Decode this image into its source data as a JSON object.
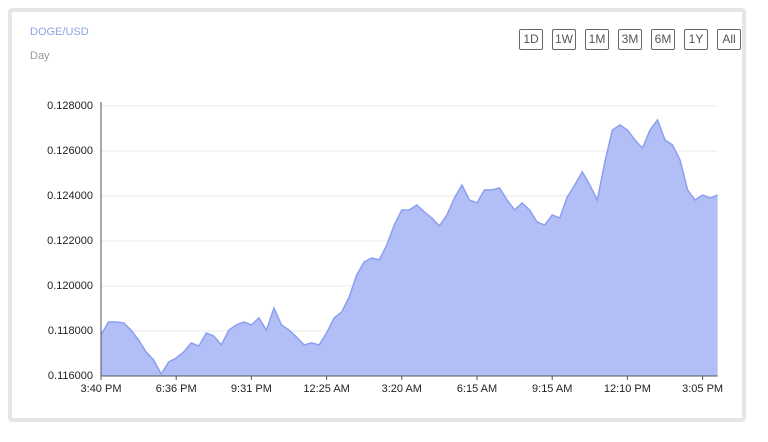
{
  "chart_data": {
    "type": "area",
    "title": "DOGE/USD",
    "subtitle": "Day",
    "color": "#8c9ef0",
    "fill": "#b2bff7",
    "grid": true,
    "categories": [
      "3:40 PM",
      null,
      null,
      null,
      null,
      null,
      null,
      null,
      null,
      null,
      "6:36 PM",
      null,
      null,
      null,
      null,
      null,
      null,
      null,
      null,
      null,
      "9:31 PM",
      null,
      null,
      null,
      null,
      null,
      null,
      null,
      null,
      null,
      "12:25 AM",
      null,
      null,
      null,
      null,
      null,
      null,
      null,
      null,
      null,
      "3:20 AM",
      null,
      null,
      null,
      null,
      null,
      null,
      null,
      null,
      null,
      "6:15 AM",
      null,
      null,
      null,
      null,
      null,
      null,
      null,
      null,
      null,
      "9:15 AM",
      null,
      null,
      null,
      null,
      null,
      null,
      null,
      null,
      null,
      "12:10 PM",
      null,
      null,
      null,
      null,
      null,
      null,
      null,
      null,
      null,
      "3:05 PM",
      null,
      null
    ],
    "values": [
      0.11782,
      0.1184,
      0.1184,
      0.11836,
      0.11804,
      0.1176,
      0.11707,
      0.11671,
      0.11609,
      0.11662,
      0.1168,
      0.11707,
      0.11747,
      0.11733,
      0.11791,
      0.11778,
      0.11738,
      0.11804,
      0.11827,
      0.1184,
      0.11827,
      0.11858,
      0.11804,
      0.11902,
      0.11827,
      0.11804,
      0.11773,
      0.11738,
      0.11747,
      0.11738,
      0.11791,
      0.11858,
      0.11884,
      0.11951,
      0.12049,
      0.12107,
      0.12124,
      0.12116,
      0.12182,
      0.12271,
      0.12338,
      0.12338,
      0.1236,
      0.12329,
      0.12302,
      0.12267,
      0.12316,
      0.12391,
      0.12449,
      0.12382,
      0.12369,
      0.12427,
      0.12427,
      0.12436,
      0.12382,
      0.12338,
      0.12369,
      0.12338,
      0.12284,
      0.12271,
      0.12316,
      0.12302,
      0.12396,
      0.12449,
      0.12507,
      0.12449,
      0.12382,
      0.12551,
      0.12693,
      0.12716,
      0.12693,
      0.12649,
      0.12613,
      0.12693,
      0.12738,
      0.12649,
      0.12627,
      0.1256,
      0.12427,
      0.12382,
      0.12404,
      0.12391,
      0.12404
    ],
    "ylim": [
      0.116,
      0.128
    ],
    "yticks": [
      {
        "value": 0.116,
        "label": "0.116000"
      },
      {
        "value": 0.118,
        "label": "0.118000"
      },
      {
        "value": 0.12,
        "label": "0.120000"
      },
      {
        "value": 0.122,
        "label": "0.122000"
      },
      {
        "value": 0.124,
        "label": "0.124000"
      },
      {
        "value": 0.126,
        "label": "0.126000"
      },
      {
        "value": 0.128,
        "label": "0.128000"
      }
    ]
  },
  "toolbar": {
    "buttons": [
      "1D",
      "1W",
      "1M",
      "3M",
      "6M",
      "1Y",
      "All"
    ]
  }
}
